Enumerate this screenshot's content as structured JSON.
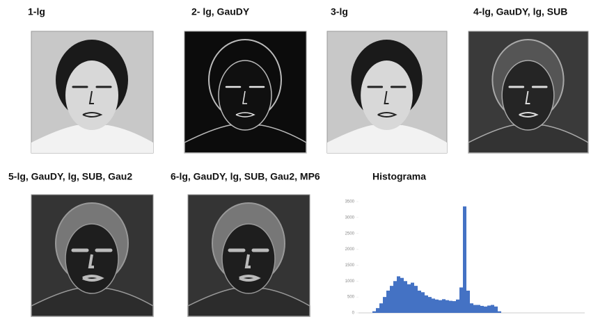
{
  "panels": [
    {
      "title": "1-lg"
    },
    {
      "title": "2- lg, GauDY"
    },
    {
      "title": "3-lg"
    },
    {
      "title": "4-lg, GauDY, lg, SUB"
    },
    {
      "title": "5-lg, GauDY, lg, SUB, Gau2"
    },
    {
      "title": "6-lg, GauDY, lg, SUB, Gau2, MP6"
    }
  ],
  "chart_data": {
    "type": "bar",
    "title": "Histograma",
    "color": "#4472c4",
    "values": [
      0,
      0,
      0,
      0,
      50,
      150,
      300,
      500,
      700,
      850,
      1000,
      1150,
      1100,
      1000,
      900,
      950,
      850,
      700,
      650,
      550,
      500,
      450,
      420,
      400,
      430,
      400,
      380,
      370,
      420,
      800,
      3350,
      700,
      300,
      250,
      250,
      220,
      200,
      230,
      250,
      200,
      50,
      0,
      0,
      0,
      0,
      0,
      0,
      0,
      0,
      0,
      0,
      0,
      0,
      0,
      0,
      0,
      0,
      0,
      0,
      0,
      0,
      0,
      0,
      0,
      0
    ],
    "ylim": [
      0,
      3500
    ],
    "yticks": [
      0,
      500,
      1000,
      1500,
      2000,
      2500,
      3000,
      3500
    ]
  }
}
